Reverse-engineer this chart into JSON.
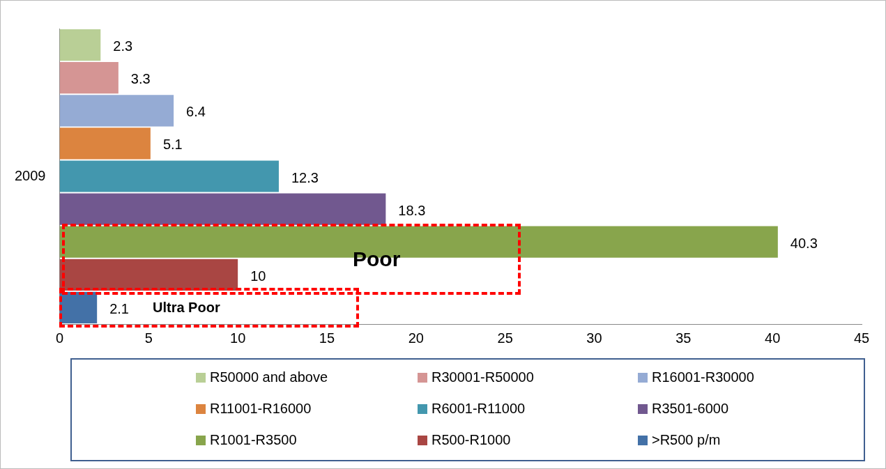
{
  "chart_data": {
    "type": "bar",
    "orientation": "horizontal",
    "stacked": true,
    "categories": [
      null,
      null,
      null,
      null,
      "2009",
      null,
      null,
      null,
      null
    ],
    "series": [
      {
        "name": "R50000 and above",
        "color": "#b9cf96",
        "values": [
          2.3,
          null,
          null,
          null,
          null,
          null,
          null,
          null,
          null
        ]
      },
      {
        "name": "R30001-R50000",
        "color": "#d59594",
        "values": [
          null,
          3.3,
          null,
          null,
          null,
          null,
          null,
          null,
          null
        ]
      },
      {
        "name": "R16001-R30000",
        "color": "#95abd4",
        "values": [
          null,
          null,
          6.4,
          null,
          null,
          null,
          null,
          null,
          null
        ]
      },
      {
        "name": "R11001-R16000",
        "color": "#dc843f",
        "values": [
          null,
          null,
          null,
          5.1,
          null,
          null,
          null,
          null,
          null
        ]
      },
      {
        "name": "R6001-R11000",
        "color": "#4397ae",
        "values": [
          null,
          null,
          null,
          null,
          12.3,
          null,
          null,
          null,
          null
        ]
      },
      {
        "name": "R3501-6000",
        "color": "#71588f",
        "values": [
          null,
          null,
          null,
          null,
          null,
          18.3,
          null,
          null,
          null
        ]
      },
      {
        "name": "R1001-R3500",
        "color": "#88a54c",
        "values": [
          null,
          null,
          null,
          null,
          null,
          null,
          40.3,
          null,
          null
        ]
      },
      {
        "name": "R500-R1000",
        "color": "#a94643",
        "values": [
          null,
          null,
          null,
          null,
          null,
          null,
          null,
          10,
          null
        ]
      },
      {
        "name": ">R500 p/m",
        "color": "#4371a7",
        "values": [
          null,
          null,
          null,
          null,
          null,
          null,
          null,
          null,
          2.1
        ]
      }
    ],
    "xlim": [
      0,
      45
    ],
    "xticks": [
      0,
      5,
      10,
      15,
      20,
      25,
      30,
      35,
      40,
      45
    ],
    "grid": false,
    "legend": "bottom",
    "data_labels": true,
    "annotations": [
      "Poor",
      "Ultra Poor"
    ]
  }
}
